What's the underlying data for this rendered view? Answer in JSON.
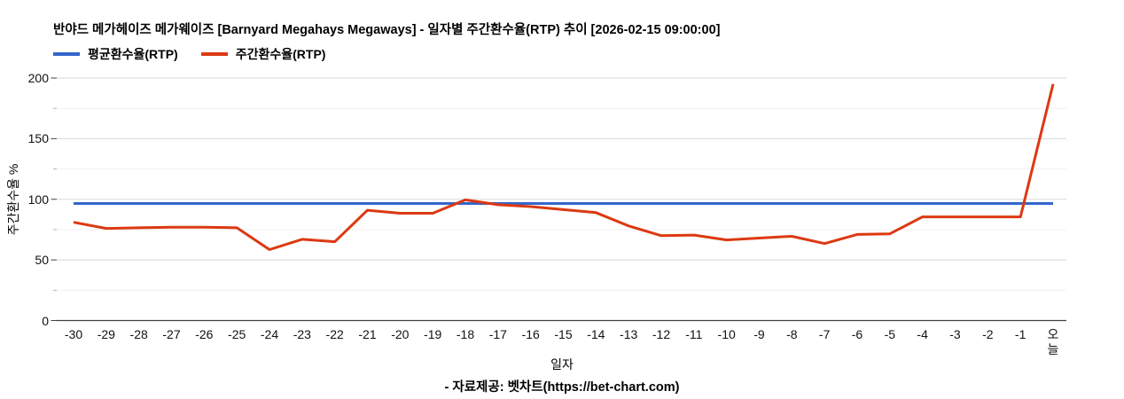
{
  "header": {
    "title": "반야드 메가헤이즈 메가웨이즈 [Barnyard Megahays Megaways] - 일자별 주간환수율(RTP) 추이 [2026-02-15 09:00:00]"
  },
  "legend": {
    "items": [
      {
        "label": "평균환수율(RTP)",
        "color": "#3366cc"
      },
      {
        "label": "주간환수율(RTP)",
        "color": "#dc3912"
      }
    ]
  },
  "chart_data": {
    "type": "line",
    "title": "반야드 메가헤이즈 메가웨이즈 [Barnyard Megahays Megaways] - 일자별 주간환수율(RTP) 추이 [2026-02-15 09:00:00]",
    "xlabel": "일자",
    "ylabel": "주간환수율 %",
    "ylim": [
      0,
      200
    ],
    "y_major_ticks": [
      0,
      50,
      100,
      150,
      200
    ],
    "y_minor_step": 25,
    "grid": true,
    "legend_position": "top-left",
    "categories": [
      "-30",
      "-29",
      "-28",
      "-27",
      "-26",
      "-25",
      "-24",
      "-23",
      "-22",
      "-21",
      "-20",
      "-19",
      "-18",
      "-17",
      "-16",
      "-15",
      "-14",
      "-13",
      "-12",
      "-11",
      "-10",
      "-9",
      "-8",
      "-7",
      "-6",
      "-5",
      "-4",
      "-3",
      "-2",
      "-1",
      "오늘"
    ],
    "series": [
      {
        "id": "average-rtp",
        "name": "평균환수율(RTP)",
        "color": "#3366cc",
        "constant": 96.5
      },
      {
        "id": "weekly-rtp",
        "name": "주간환수율(RTP)",
        "color": "#dc3912",
        "values": [
          81,
          76,
          76.5,
          77,
          77,
          76.5,
          58.5,
          67,
          65,
          91,
          88.5,
          88.5,
          99.5,
          95.5,
          94,
          91.5,
          89,
          78,
          70,
          70.5,
          66.5,
          68,
          69.5,
          63.5,
          71,
          71.5,
          85.5,
          85.5,
          85.5,
          85.5,
          195
        ]
      }
    ]
  },
  "colors": {
    "average_line": "#3366cc",
    "weekly_line": "#dc3912",
    "major_grid": "#d9d9d9",
    "minor_grid": "#f0f0f0",
    "axis": "#424242"
  },
  "footer": {
    "source": "- 자료제공: 벳차트(https://bet-chart.com)"
  }
}
